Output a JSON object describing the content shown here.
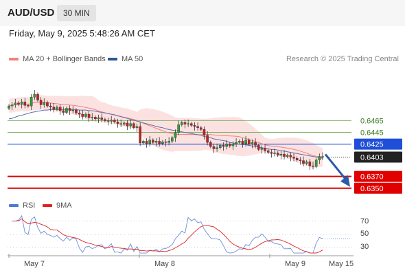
{
  "header": {
    "symbol": "AUD/USD",
    "timeframe": "30 MIN"
  },
  "datetime": "Friday, May 9, 2025 5:48:26 AM CET",
  "legend": {
    "ma20": {
      "label": "MA 20 + Bollinger Bands",
      "color": "#f08080"
    },
    "ma50": {
      "label": "MA 50",
      "color": "#2f5597"
    }
  },
  "credit": "Research © 2025 Trading Central",
  "rsi_legend": {
    "rsi": {
      "label": "RSI",
      "color": "#4a7bd4"
    },
    "ma9": {
      "label": "9MA",
      "color": "#e02020"
    }
  },
  "chart_data": {
    "type": "line",
    "x_labels": [
      "May 7",
      "May 8",
      "May 9",
      "May 15"
    ],
    "price_levels": [
      {
        "value": "0.6465",
        "kind": "resistance",
        "color": "#6aa84f"
      },
      {
        "value": "0.6445",
        "kind": "resistance",
        "color": "#6aa84f"
      },
      {
        "value": "0.6425",
        "kind": "pivot",
        "color": "#1f4fd8"
      },
      {
        "value": "0.6403",
        "kind": "last",
        "color": "#222222"
      },
      {
        "value": "0.6370",
        "kind": "support",
        "color": "#e00000"
      },
      {
        "value": "0.6350",
        "kind": "support",
        "color": "#e00000"
      }
    ],
    "ylim": [
      0.6331,
      0.6558
    ],
    "price_close": [
      0.649,
      0.6492,
      0.6495,
      0.6493,
      0.6497,
      0.6491,
      0.649,
      0.6505,
      0.651,
      0.65,
      0.6492,
      0.6496,
      0.649,
      0.6488,
      0.6484,
      0.6488,
      0.6482,
      0.6479,
      0.6486,
      0.6482,
      0.6483,
      0.6478,
      0.6476,
      0.6472,
      0.6476,
      0.647,
      0.6471,
      0.6468,
      0.647,
      0.6467,
      0.6465,
      0.6464,
      0.6466,
      0.6463,
      0.646,
      0.6459,
      0.6461,
      0.6456,
      0.646,
      0.6453,
      0.6455,
      0.6427,
      0.643,
      0.6426,
      0.6432,
      0.6428,
      0.643,
      0.6426,
      0.6429,
      0.6428,
      0.643,
      0.6436,
      0.6445,
      0.6458,
      0.6462,
      0.6459,
      0.646,
      0.6457,
      0.6455,
      0.6453,
      0.645,
      0.644,
      0.6428,
      0.6421,
      0.6417,
      0.6419,
      0.6423,
      0.6421,
      0.6425,
      0.6422,
      0.6425,
      0.6428,
      0.643,
      0.6426,
      0.6432,
      0.6425,
      0.6428,
      0.6423,
      0.6416,
      0.6418,
      0.6414,
      0.6411,
      0.6409,
      0.641,
      0.6406,
      0.6408,
      0.6404,
      0.6406,
      0.6403,
      0.6401,
      0.6398,
      0.6397,
      0.6392,
      0.6395,
      0.6388,
      0.6387,
      0.6398,
      0.6404,
      0.6403
    ],
    "ma50": [
      0.6468,
      0.6469,
      0.6471,
      0.6473,
      0.6474,
      0.6476,
      0.6477,
      0.6479,
      0.648,
      0.6481,
      0.6482,
      0.6483,
      0.6483,
      0.6484,
      0.6484,
      0.6484,
      0.6484,
      0.6484,
      0.6484,
      0.6484,
      0.6484,
      0.6484,
      0.6483,
      0.6483,
      0.6483,
      0.6482,
      0.6482,
      0.6481,
      0.648,
      0.6479,
      0.6478,
      0.6477,
      0.6476,
      0.6475,
      0.6473,
      0.6472,
      0.647,
      0.6469,
      0.6467,
      0.6466,
      0.6464,
      0.6463,
      0.6461,
      0.646,
      0.6458,
      0.6457,
      0.6455,
      0.6454,
      0.6453,
      0.6451,
      0.645,
      0.6449,
      0.6448,
      0.6447,
      0.6446,
      0.6445,
      0.6444,
      0.6443,
      0.6442,
      0.6441,
      0.644,
      0.6438,
      0.6437,
      0.6436,
      0.6434,
      0.6433,
      0.6432,
      0.6431,
      0.643,
      0.6428,
      0.6427,
      0.6426,
      0.6425,
      0.6424,
      0.6424,
      0.6423,
      0.6422,
      0.6421,
      0.642,
      0.6419,
      0.6418,
      0.6417,
      0.6416,
      0.6416,
      0.6415,
      0.6414,
      0.6413,
      0.6412,
      0.6411,
      0.641,
      0.6409,
      0.6408,
      0.6407,
      0.6406,
      0.6405,
      0.6404,
      0.6403,
      0.6402,
      0.6401
    ],
    "rsi": {
      "ticks": [
        "70",
        "50",
        "30"
      ],
      "ylim": [
        18,
        82
      ]
    }
  }
}
